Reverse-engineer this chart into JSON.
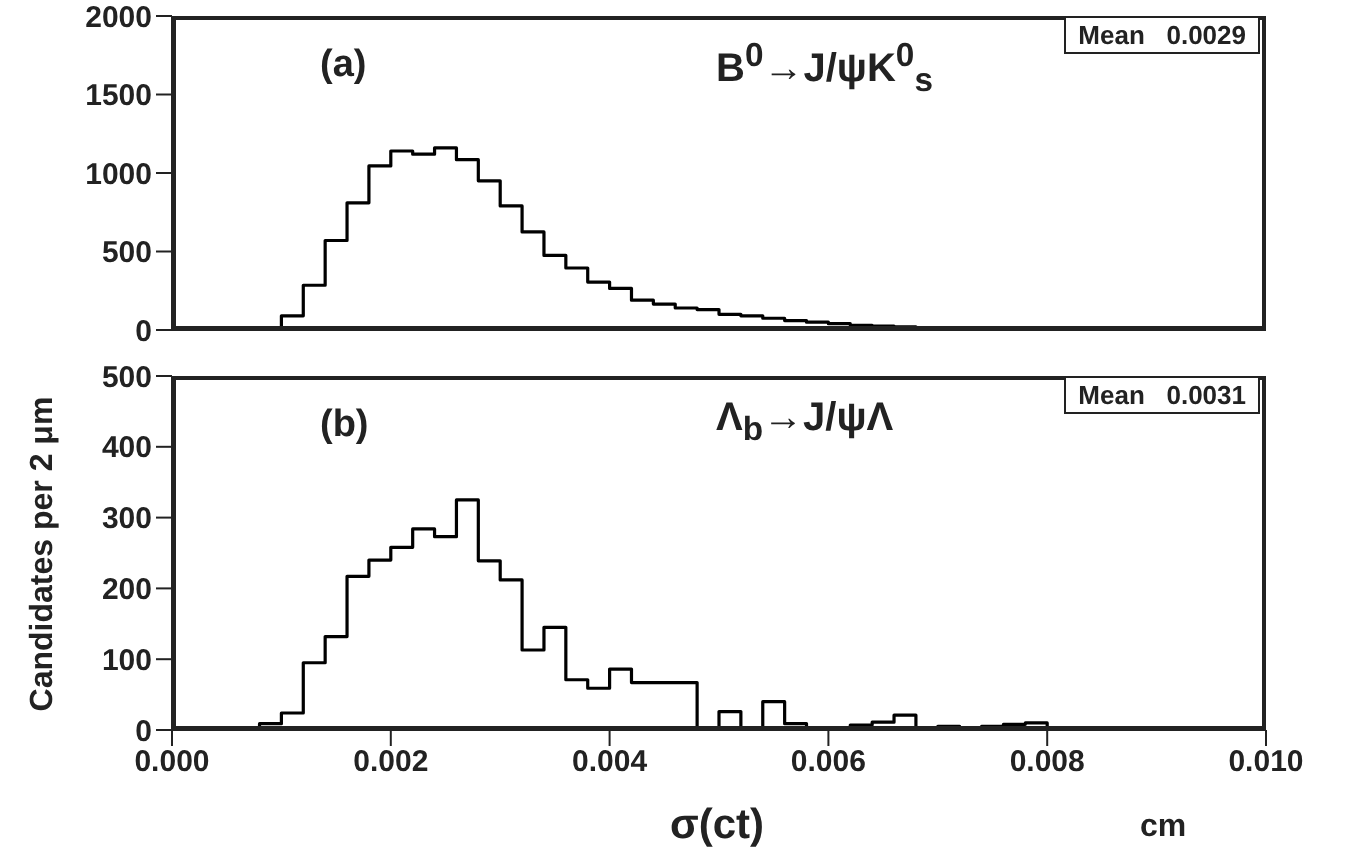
{
  "chart_data": [
    {
      "type": "histogram",
      "annotations": [
        "(a)",
        "B$^{0}$→J/ψK$^{0}$$_{s}$",
        "Mean   0.0029"
      ],
      "bins": [
        0,
        0.0002,
        0.0004,
        0.0006,
        0.0008,
        0.001,
        0.0012,
        0.0014,
        0.0016,
        0.0018,
        0.002,
        0.0022,
        0.0024,
        0.0026,
        0.0028,
        0.003,
        0.0032,
        0.0034,
        0.0036,
        0.0038,
        0.004,
        0.0042,
        0.0044,
        0.0046,
        0.0048,
        0.005,
        0.0052,
        0.0054,
        0.0056,
        0.0058,
        0.006,
        0.0062,
        0.0064,
        0.0066,
        0.0068,
        0.007,
        0.0072,
        0.0074,
        0.0076,
        0.0078,
        0.008,
        0.0082,
        0.0084,
        0.0086,
        0.0088,
        0.009,
        0.0092,
        0.0094,
        0.0096,
        0.0098,
        0.01
      ],
      "values": [
        0,
        0,
        0,
        5,
        15,
        90,
        285,
        570,
        810,
        1045,
        1140,
        1120,
        1160,
        1085,
        950,
        790,
        625,
        475,
        395,
        305,
        265,
        190,
        165,
        140,
        130,
        100,
        90,
        75,
        60,
        50,
        40,
        30,
        25,
        20,
        15,
        12,
        10,
        8,
        6,
        5,
        4,
        3,
        2,
        2,
        1,
        1,
        1,
        0,
        0,
        0
      ],
      "color": "#000000",
      "xlim": [
        0,
        0.01
      ],
      "xticks": [
        {
          "value": 0,
          "label": null
        },
        {
          "value": 0.002,
          "label": null
        },
        {
          "value": 0.004,
          "label": null
        },
        {
          "value": 0.006,
          "label": null
        },
        {
          "value": 0.008,
          "label": null
        },
        {
          "value": 0.01,
          "label": null
        }
      ],
      "ylim": [
        0,
        2000
      ],
      "yticks": [
        0,
        500,
        1000,
        1500,
        2000
      ],
      "tick_labels": "y",
      "grid": false,
      "legend": false
    },
    {
      "type": "histogram",
      "xlabel": "σ(ct)",
      "ylabel": "Candidates per 2 μm",
      "annotations": [
        "(b)",
        "Λ$_{b}$→J/ψΛ",
        "Mean   0.0031",
        "cm"
      ],
      "bins": [
        0,
        0.0002,
        0.0004,
        0.0006,
        0.0008,
        0.001,
        0.0012,
        0.0014,
        0.0016,
        0.0018,
        0.002,
        0.0022,
        0.0024,
        0.0026,
        0.0028,
        0.003,
        0.0032,
        0.0034,
        0.0036,
        0.0038,
        0.004,
        0.0042,
        0.0044,
        0.0046,
        0.0048,
        0.005,
        0.0052,
        0.0054,
        0.0056,
        0.0058,
        0.006,
        0.0062,
        0.0064,
        0.0066,
        0.0068,
        0.007,
        0.0072,
        0.0074,
        0.0076,
        0.0078,
        0.008,
        0.0082,
        0.0084,
        0.0086,
        0.0088,
        0.009,
        0.0092,
        0.0094,
        0.0096,
        0.0098,
        0.01
      ],
      "values": [
        0,
        0,
        0,
        0,
        9,
        24,
        95,
        132,
        217,
        240,
        258,
        284,
        273,
        325,
        239,
        212,
        113,
        145,
        71,
        59,
        86,
        67,
        67,
        67,
        0,
        26,
        3,
        40,
        9,
        0,
        2,
        7,
        11,
        21,
        0,
        5,
        2,
        5,
        8,
        10,
        0,
        0,
        0,
        0,
        0,
        0,
        0,
        0,
        0,
        0
      ],
      "color": "#000000",
      "xlim": [
        0,
        0.01
      ],
      "xticks": [
        {
          "value": 0,
          "label": "0.000"
        },
        {
          "value": 0.002,
          "label": "0.002"
        },
        {
          "value": 0.004,
          "label": "0.004"
        },
        {
          "value": 0.006,
          "label": "0.006"
        },
        {
          "value": 0.008,
          "label": "0.008"
        },
        {
          "value": 0.01,
          "label": "0.010"
        }
      ],
      "ylim": [
        0,
        500
      ],
      "yticks": [
        0,
        100,
        200,
        300,
        400,
        500
      ],
      "grid": false,
      "legend": false
    }
  ]
}
